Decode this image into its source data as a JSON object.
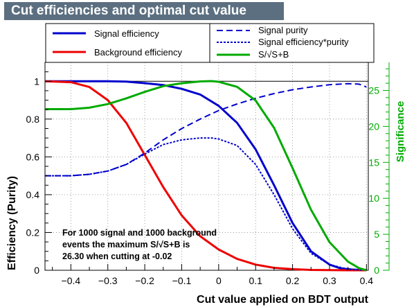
{
  "title": "Cut efficiencies and optimal cut value",
  "chart_data": {
    "type": "line",
    "xlabel": "Cut value applied on BDT output",
    "ylabel": "Efficiency (Purity)",
    "ylabel_right": "Significance",
    "xlim": [
      -0.47,
      0.405
    ],
    "ylim": [
      0,
      1.1
    ],
    "ylim_right": [
      0,
      28.9
    ],
    "x_ticks": [
      -0.4,
      -0.3,
      -0.2,
      -0.1,
      0,
      0.1,
      0.2,
      0.3,
      0.4
    ],
    "x_tick_labels": [
      "−0.4",
      "−0.3",
      "−0.2",
      "−0.1",
      "0",
      "0.1",
      "0.2",
      "0.3",
      "0.4"
    ],
    "y_ticks": [
      0,
      0.2,
      0.4,
      0.6,
      0.8,
      1
    ],
    "y_tick_labels": [
      "0",
      "0.2",
      "0.4",
      "0.6",
      "0.8",
      "1"
    ],
    "y_ticks_right": [
      0,
      5,
      10,
      15,
      20,
      25
    ],
    "y_tick_labels_right": [
      "0",
      "5",
      "10",
      "15",
      "20",
      "25"
    ],
    "grid": true,
    "legend_left": [
      "Signal efficiency",
      "Background efficiency"
    ],
    "legend_right": [
      "Signal purity",
      "Signal efficiency*purity",
      "S/√S+B"
    ],
    "annotation": [
      "For 1000 signal and 1000 background",
      "events the maximum S/√S+B is",
      "26.30 when cutting at -0.02"
    ],
    "colors": {
      "signal": "#0000cc",
      "background": "#ee0000",
      "significance": "#00aa00",
      "title_bg": "#5b6f80",
      "right_axis": "#00aa00"
    },
    "series": [
      {
        "name": "Signal efficiency",
        "color": "#0000cc",
        "style": "solid",
        "axis": "left",
        "x": [
          -0.47,
          -0.4,
          -0.3,
          -0.25,
          -0.2,
          -0.15,
          -0.1,
          -0.05,
          0,
          0.05,
          0.1,
          0.15,
          0.2,
          0.25,
          0.3,
          0.33,
          0.36,
          0.38,
          0.4
        ],
        "y": [
          1.0,
          1.0,
          1.0,
          0.998,
          0.99,
          0.98,
          0.96,
          0.93,
          0.87,
          0.78,
          0.64,
          0.45,
          0.25,
          0.1,
          0.03,
          0.01,
          0.004,
          0.002,
          0.0
        ]
      },
      {
        "name": "Background efficiency",
        "color": "#ee0000",
        "style": "solid",
        "axis": "left",
        "x": [
          -0.47,
          -0.4,
          -0.35,
          -0.3,
          -0.25,
          -0.2,
          -0.15,
          -0.1,
          -0.05,
          0,
          0.05,
          0.1,
          0.15,
          0.2,
          0.25,
          0.3,
          0.35,
          0.4
        ],
        "y": [
          1.0,
          0.995,
          0.97,
          0.9,
          0.78,
          0.61,
          0.44,
          0.29,
          0.18,
          0.11,
          0.06,
          0.03,
          0.013,
          0.006,
          0.002,
          0.001,
          0.0,
          0.0
        ]
      },
      {
        "name": "Signal purity",
        "color": "#0000cc",
        "style": "dashed",
        "axis": "left",
        "x": [
          -0.47,
          -0.4,
          -0.35,
          -0.3,
          -0.25,
          -0.2,
          -0.15,
          -0.1,
          -0.05,
          0,
          0.05,
          0.1,
          0.15,
          0.2,
          0.25,
          0.3,
          0.35,
          0.38,
          0.4
        ],
        "y": [
          0.5,
          0.5,
          0.508,
          0.525,
          0.56,
          0.62,
          0.69,
          0.75,
          0.8,
          0.845,
          0.88,
          0.91,
          0.935,
          0.955,
          0.97,
          0.982,
          0.987,
          0.985,
          0.97
        ]
      },
      {
        "name": "Signal efficiency*purity",
        "color": "#0000cc",
        "style": "dotted",
        "axis": "left",
        "x": [
          -0.47,
          -0.4,
          -0.35,
          -0.3,
          -0.25,
          -0.2,
          -0.15,
          -0.1,
          -0.05,
          -0.02,
          0,
          0.05,
          0.1,
          0.15,
          0.2,
          0.25,
          0.3,
          0.35,
          0.4
        ],
        "y": [
          0.5,
          0.5,
          0.508,
          0.525,
          0.56,
          0.615,
          0.665,
          0.69,
          0.7,
          0.7,
          0.695,
          0.66,
          0.56,
          0.4,
          0.22,
          0.09,
          0.03,
          0.005,
          0.0
        ]
      },
      {
        "name": "S/√S+B",
        "color": "#00aa00",
        "style": "solid",
        "axis": "right",
        "x": [
          -0.47,
          -0.4,
          -0.35,
          -0.3,
          -0.25,
          -0.2,
          -0.15,
          -0.1,
          -0.05,
          -0.02,
          0,
          0.05,
          0.1,
          0.15,
          0.2,
          0.25,
          0.3,
          0.35,
          0.38,
          0.4
        ],
        "y": [
          22.4,
          22.4,
          22.6,
          23.1,
          23.9,
          24.8,
          25.6,
          26.0,
          26.25,
          26.3,
          26.2,
          25.5,
          23.6,
          19.8,
          14.2,
          8.4,
          3.9,
          1.2,
          0.3,
          0.0
        ]
      }
    ]
  }
}
